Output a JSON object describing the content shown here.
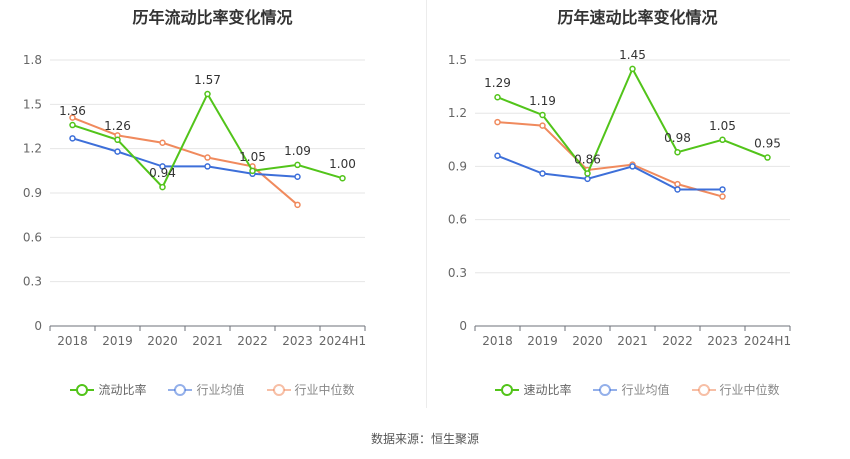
{
  "source_text": "数据来源：恒生聚源",
  "chart_data": [
    {
      "type": "line",
      "title": "历年流动比率变化情况",
      "categories": [
        "2018",
        "2019",
        "2020",
        "2021",
        "2022",
        "2023",
        "2024H1"
      ],
      "yticks": [
        "0",
        "0.3",
        "0.6",
        "0.9",
        "1.2",
        "1.5",
        "1.8"
      ],
      "ylim": [
        0,
        1.8
      ],
      "series": [
        {
          "name": "流动比率",
          "color": "#52c41a",
          "values": [
            1.36,
            1.26,
            0.94,
            1.57,
            1.05,
            1.09,
            1.0
          ],
          "labels": [
            "1.36",
            "1.26",
            "0.94",
            "1.57",
            "1.05",
            "1.09",
            "1.00"
          ]
        },
        {
          "name": "行业均值",
          "color": "#3d6fd9",
          "values": [
            1.27,
            1.18,
            1.08,
            1.08,
            1.03,
            1.01,
            null
          ],
          "labels": []
        },
        {
          "name": "行业中位数",
          "color": "#f08a5d",
          "values": [
            1.41,
            1.29,
            1.24,
            1.14,
            1.08,
            0.82,
            null
          ],
          "labels": []
        }
      ],
      "legend": "bottom",
      "grid": true
    },
    {
      "type": "line",
      "title": "历年速动比率变化情况",
      "categories": [
        "2018",
        "2019",
        "2020",
        "2021",
        "2022",
        "2023",
        "2024H1"
      ],
      "yticks": [
        "0",
        "0.3",
        "0.6",
        "0.9",
        "1.2",
        "1.5"
      ],
      "ylim": [
        0,
        1.5
      ],
      "series": [
        {
          "name": "速动比率",
          "color": "#52c41a",
          "values": [
            1.29,
            1.19,
            0.86,
            1.45,
            0.98,
            1.05,
            0.95
          ],
          "labels": [
            "1.29",
            "1.19",
            "0.86",
            "1.45",
            "0.98",
            "1.05",
            "0.95"
          ]
        },
        {
          "name": "行业均值",
          "color": "#3d6fd9",
          "values": [
            0.96,
            0.86,
            0.83,
            0.9,
            0.77,
            0.77,
            null
          ],
          "labels": []
        },
        {
          "name": "行业中位数",
          "color": "#f08a5d",
          "values": [
            1.15,
            1.13,
            0.88,
            0.91,
            0.8,
            0.73,
            null
          ],
          "labels": []
        }
      ],
      "legend": "bottom",
      "grid": true
    }
  ]
}
